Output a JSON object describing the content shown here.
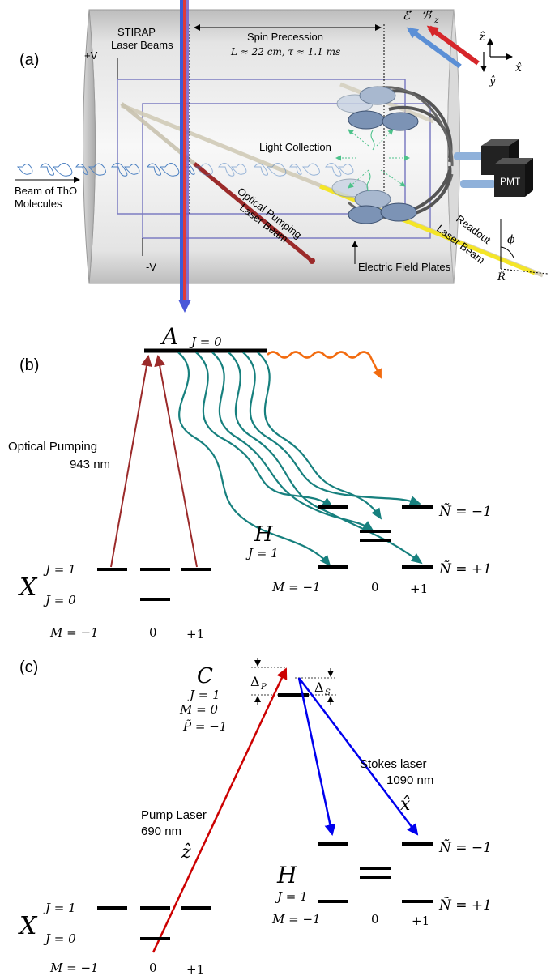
{
  "panel_a": {
    "label": "(a)",
    "stirap_label_1": "STIRAP",
    "stirap_label_2": "Laser Beams",
    "plus_v": "+V",
    "minus_v": "-V",
    "spin_precession": "Spin Precession",
    "spin_params": "L ≈ 22 cm, τ ≈ 1.1 ms",
    "light_collection": "Light Collection",
    "beam_label_1": "Beam of ThO",
    "beam_label_2": "Molecules",
    "optical_pumping_1": "Optical Pumping",
    "optical_pumping_2": "Laser Beam",
    "readout_1": "Readout",
    "readout_2": "Laser Beam",
    "electric_plates": "Electric Field Plates",
    "pmt": "PMT",
    "e_field": "ℰ⃗",
    "b_field": "ℬ⃗",
    "b_sub": "z",
    "axis_z": "ẑ",
    "axis_x": "x̂",
    "axis_y": "ŷ",
    "phi": "ϕ",
    "r_hat": "R̂"
  },
  "panel_b": {
    "label": "(b)",
    "a_state": "A",
    "a_j": "J = 0",
    "optical_pumping": "Optical Pumping",
    "wavelength": "943 nm",
    "h_state": "H",
    "h_j": "J = 1",
    "n_minus": "Ñ = −1",
    "n_plus": "Ñ = +1",
    "h_m_axis": [
      "M = −1",
      "0",
      "+1"
    ],
    "x_state": "X",
    "x_j1": "J = 1",
    "x_j0": "J = 0",
    "x_m_axis": [
      "M = −1",
      "0",
      "+1"
    ]
  },
  "panel_c": {
    "label": "(c)",
    "c_state": "C",
    "c_j": "J = 1",
    "c_m": "M = 0",
    "c_p": "P̃ = −1",
    "delta_p": "Δ",
    "delta_p_sub": "P",
    "delta_s": "Δ",
    "delta_s_sub": "S",
    "pump_1": "Pump Laser",
    "pump_2": "690 nm",
    "pump_pol": "ẑ",
    "stokes_1": "Stokes laser",
    "stokes_2": "1090 nm",
    "stokes_pol": "x̂",
    "h_state": "H",
    "h_j": "J = 1",
    "n_minus": "Ñ = −1",
    "n_plus": "Ñ = +1",
    "h_m_axis": [
      "M = −1",
      "0",
      "+1"
    ],
    "x_state": "X",
    "x_j1": "J = 1",
    "x_j0": "J = 0",
    "x_m_axis": [
      "M = −1",
      "0",
      "+1"
    ]
  },
  "colors": {
    "pump_red": "#9b2a2a",
    "decay_teal": "#17807e",
    "orange": "#f26b0f",
    "laser_red": "#cc0000",
    "laser_blue": "#0000ee",
    "e_arrow": "#5b8fd6",
    "b_arrow": "#d6262a",
    "readout_yellow": "#f4e528",
    "plate_purple": "#7c7cc2"
  }
}
